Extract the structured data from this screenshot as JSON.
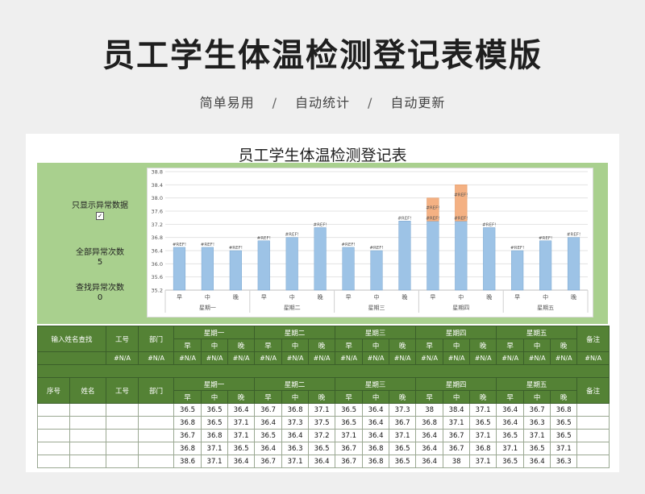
{
  "header": {
    "title": "员工学生体温检测登记表模版",
    "features": [
      "简单易用",
      "自动统计",
      "自动更新"
    ],
    "separator": "/"
  },
  "sheet": {
    "title": "员工学生体温检测登记表",
    "panel": {
      "show_abnormal_label": "只显示异常数据",
      "checkbox_mark": "✓",
      "total_abnormal_label": "全部异常次数",
      "total_abnormal_value": "5",
      "search_abnormal_label": "查找异常次数",
      "search_abnormal_value": "0"
    }
  },
  "chart_data": {
    "type": "bar",
    "stacked": true,
    "colors": {
      "normal": "#9dc3e6",
      "abnormal": "#f4b183"
    },
    "y_ticks": [
      "35.2",
      "35.6",
      "36.0",
      "36.4",
      "36.8",
      "37.2",
      "37.6",
      "38.0",
      "38.4",
      "38.8"
    ],
    "ylim": [
      35.2,
      38.8
    ],
    "threshold": 37.3,
    "categories": [
      "早",
      "中",
      "晚",
      "早",
      "中",
      "晚",
      "早",
      "中",
      "晚",
      "早",
      "中",
      "晚",
      "早",
      "中",
      "晚"
    ],
    "groups": [
      "星期一",
      "星期二",
      "星期三",
      "星期四",
      "星期五"
    ],
    "values": [
      36.5,
      36.5,
      36.4,
      36.7,
      36.8,
      37.1,
      36.5,
      36.4,
      37.3,
      38.0,
      38.4,
      37.1,
      36.4,
      36.7,
      36.8
    ],
    "data_label": "#REF!"
  },
  "table": {
    "search_label": "输入姓名查找",
    "col_id": "工号",
    "col_dept": "部门",
    "col_seq": "序号",
    "col_name": "姓名",
    "col_note": "备注",
    "days": [
      "星期一",
      "星期二",
      "星期三",
      "星期四",
      "星期五"
    ],
    "slots": [
      "早",
      "中",
      "晚"
    ],
    "na": "#N/A",
    "rows": [
      [
        "36.5",
        "36.5",
        "36.4",
        "36.7",
        "36.8",
        "37.1",
        "36.5",
        "36.4",
        "37.3",
        "38",
        "38.4",
        "37.1",
        "36.4",
        "36.7",
        "36.8"
      ],
      [
        "36.8",
        "36.5",
        "37.1",
        "36.4",
        "37.3",
        "37.5",
        "36.5",
        "36.4",
        "36.7",
        "36.8",
        "37.1",
        "36.5",
        "36.4",
        "36.3",
        "36.5"
      ],
      [
        "36.7",
        "36.8",
        "37.1",
        "36.5",
        "36.4",
        "37.2",
        "37.1",
        "36.4",
        "37.1",
        "36.4",
        "36.7",
        "37.1",
        "36.5",
        "37.1",
        "36.5"
      ],
      [
        "36.8",
        "37.1",
        "36.5",
        "36.4",
        "36.3",
        "36.5",
        "36.7",
        "36.8",
        "36.5",
        "36.4",
        "36.7",
        "36.8",
        "37.1",
        "36.5",
        "37.1"
      ],
      [
        "38.6",
        "37.1",
        "36.4",
        "36.7",
        "37.1",
        "36.4",
        "36.7",
        "36.8",
        "36.5",
        "36.4",
        "38",
        "37.1",
        "36.5",
        "36.4",
        "36.3"
      ]
    ]
  }
}
